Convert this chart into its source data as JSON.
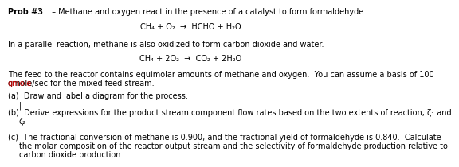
{
  "title_bold": "Prob #3",
  "title_dash": " – Methane and oxygen react in the presence of a catalyst to form formaldehyde.",
  "eq1": "CH₄ + O₂  →  HCHO + H₂O",
  "parallel_text": "In a parallel reaction, methane is also oxidized to form carbon dioxide and water.",
  "eq2": "CH₄ + 2O₂  →  CO₂ + 2H₂O",
  "feed_line1": "The feed to the reactor contains equimolar amounts of methane and oxygen.  You can assume a basis of 100",
  "feed_line2": "gmole/sec for the mixed feed stream.",
  "part_a": "(a)  Draw and label a diagram for the process.",
  "cursor": "|",
  "part_b1": "(b)  Derive expressions for the product stream component flow rates based on the two extents of reaction, ζ₁ and",
  "part_b2": "     ζ₂",
  "part_c1": "(c)  The fractional conversion of methane is 0.900, and the fractional yield of formaldehyde is 0.840.  Calculate",
  "part_c2": "     the molar composition of the reactor output stream and the selectivity of formaldehyde production relative to",
  "part_c3": "     carbon dioxide production.",
  "bg_color": "#ffffff",
  "text_color": "#000000",
  "font_size": 7.0,
  "gmole_underline_color": "#cc0000"
}
